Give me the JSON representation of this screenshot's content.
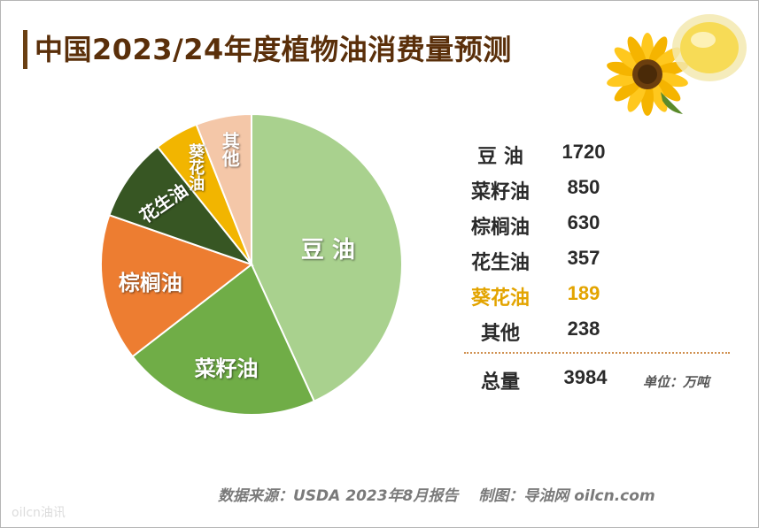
{
  "title": "中国2023/24年度植物油消费量预测",
  "chart_data": {
    "type": "pie",
    "title": "中国2023/24年度植物油消费量预测",
    "categories": [
      "豆油",
      "菜籽油",
      "棕榈油",
      "花生油",
      "葵花油",
      "其他"
    ],
    "values": [
      1720,
      850,
      630,
      357,
      189,
      238
    ],
    "colors": [
      "#a9d18e",
      "#70ad47",
      "#ed7d31",
      "#375623",
      "#f2b500",
      "#f4c7a8"
    ],
    "slice_labels": [
      "豆 油",
      "菜籽油",
      "棕榈油",
      "花生油",
      "葵花油",
      "其他"
    ]
  },
  "table": {
    "rows": [
      {
        "name": "豆 油",
        "value": "1720",
        "highlight": false
      },
      {
        "name": "菜籽油",
        "value": "850",
        "highlight": false
      },
      {
        "name": "棕榈油",
        "value": "630",
        "highlight": false
      },
      {
        "name": "花生油",
        "value": "357",
        "highlight": false
      },
      {
        "name": "葵花油",
        "value": "189",
        "highlight": true
      },
      {
        "name": "其他",
        "value": "238",
        "highlight": false
      }
    ],
    "total": {
      "name": "总量",
      "value": "3984"
    },
    "highlight_color": "#e3a400"
  },
  "unit": "单位：万吨",
  "source": "数据来源：USDA 2023年8月报告　 制图：导油网 oilcn.com",
  "watermark": "oilcn油讯"
}
